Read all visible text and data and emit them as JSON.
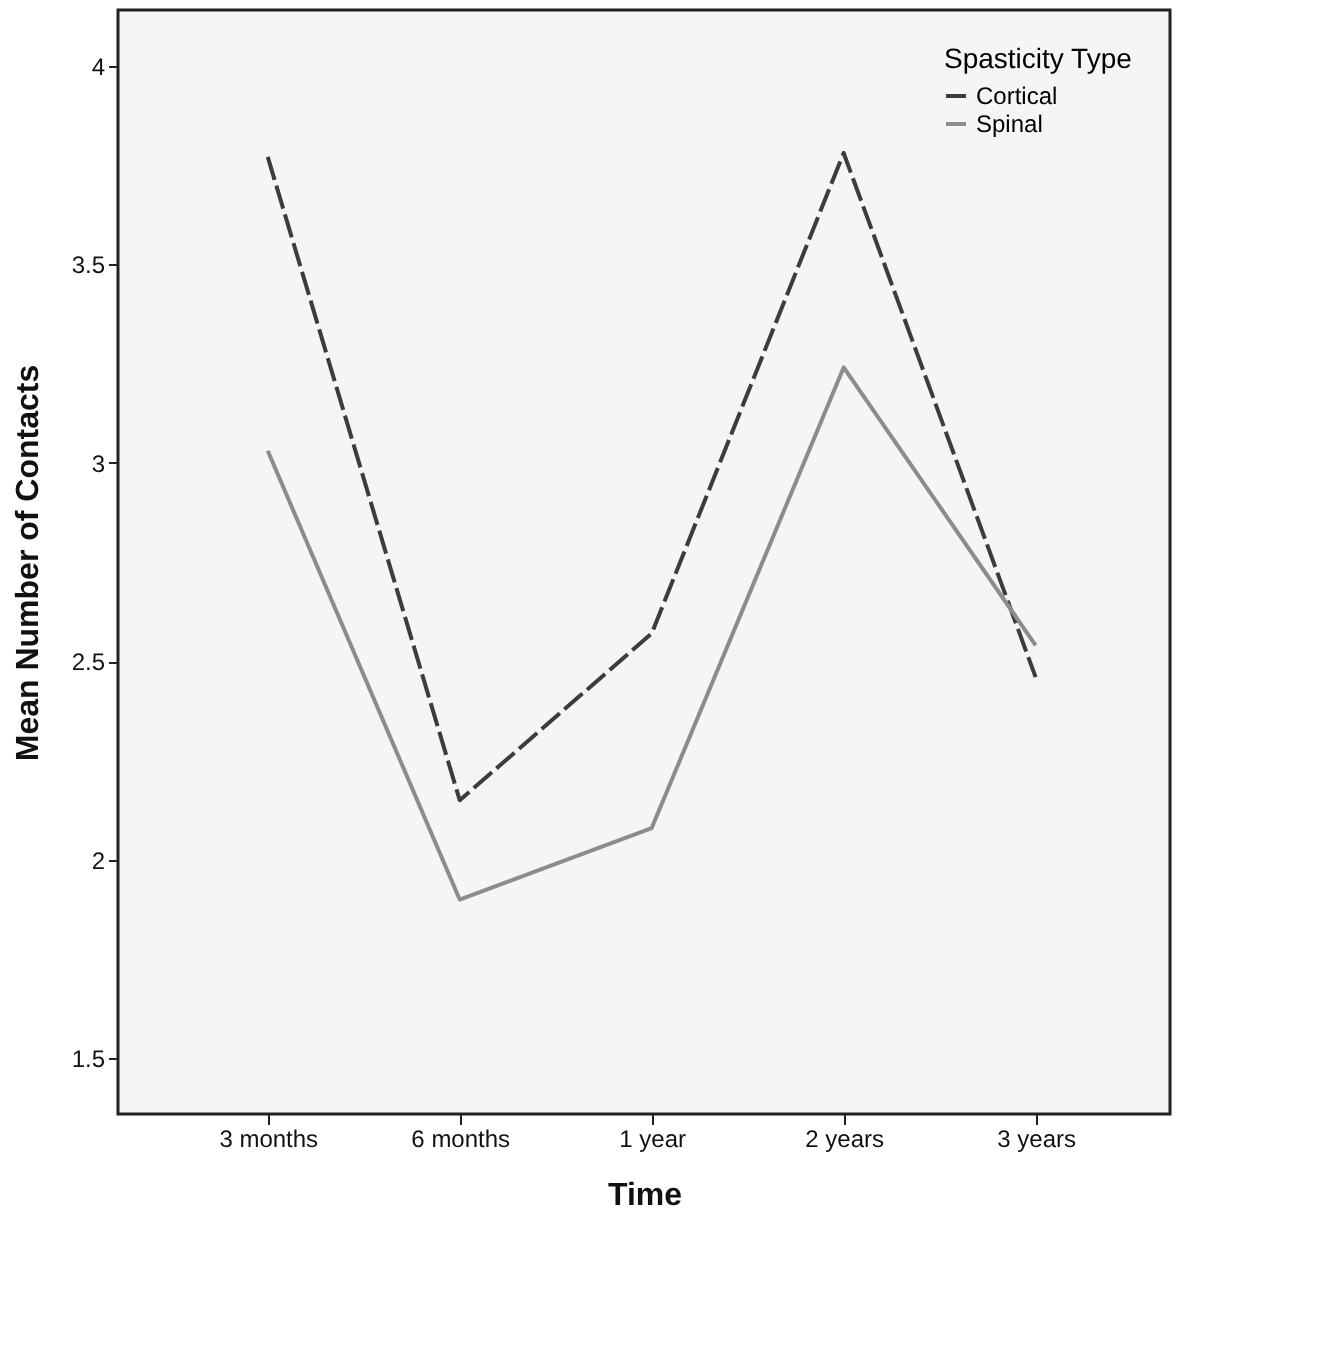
{
  "chart_data": {
    "type": "line",
    "xlabel": "Time",
    "ylabel": "Mean Number of Contacts",
    "legend_title": "Spasticity Type",
    "legend": "top right",
    "categories": [
      "3 months",
      "6 months",
      "1 year",
      "2 years",
      "3 years"
    ],
    "series": [
      {
        "name": "Cortical",
        "color": "#3c3c3c",
        "line_style": "dashed",
        "values": [
          3.77,
          2.15,
          2.57,
          3.78,
          2.46
        ]
      },
      {
        "name": "Spinal",
        "color": "#8c8c8c",
        "line_style": "solid",
        "values": [
          3.03,
          1.9,
          2.08,
          3.24,
          2.54
        ]
      }
    ],
    "ylim": [
      1.36,
      4.14
    ],
    "yticks": [
      1.5,
      2,
      2.5,
      3,
      3.5,
      4
    ],
    "grid": false,
    "marker": "none"
  }
}
